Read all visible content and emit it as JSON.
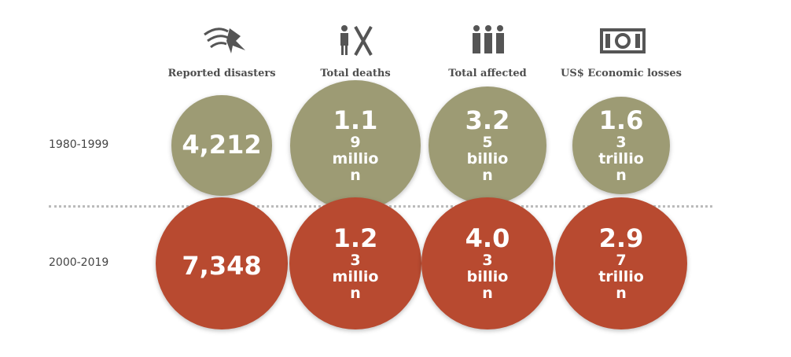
{
  "chart_data": {
    "type": "bubble-grid",
    "categories": [
      "Reported disasters",
      "Total deaths",
      "Total affected",
      "US$ Economic losses"
    ],
    "series": [
      {
        "name": "1980-1999",
        "color": "#9d9b74",
        "values": [
          4212,
          1190000,
          3250000000,
          1630000000000
        ],
        "value_labels": [
          "4,212",
          "1.19 million",
          "3.25 billion",
          "1.63 trillion"
        ]
      },
      {
        "name": "2000-2019",
        "color": "#b84a30",
        "values": [
          7348,
          1230000,
          4030000000,
          2970000000000
        ],
        "value_labels": [
          "7,348",
          "1.23 million",
          "4.03 billion",
          "2.97 trillion"
        ]
      }
    ]
  }
}
